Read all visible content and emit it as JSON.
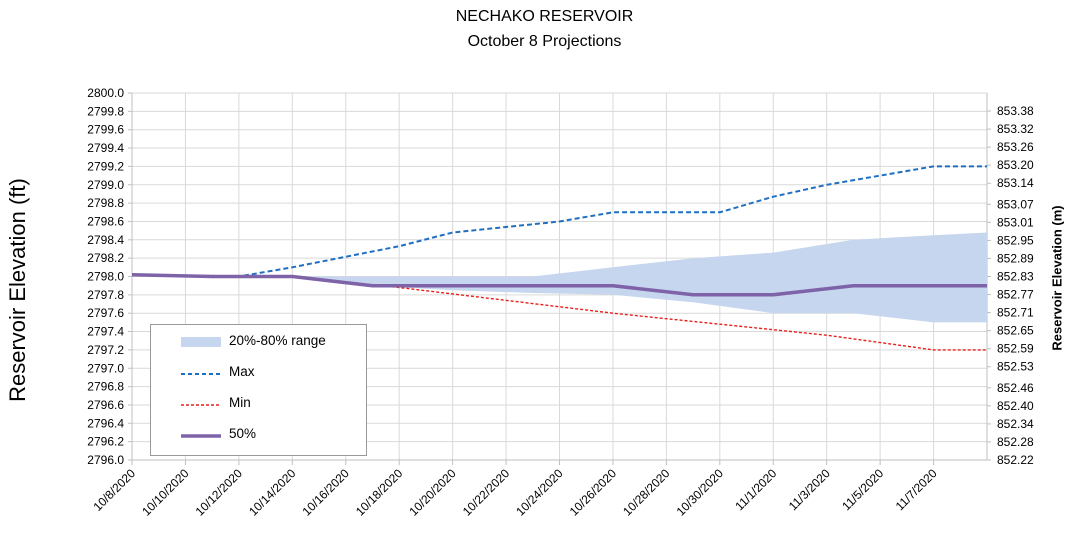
{
  "chart_data": {
    "type": "line",
    "title": "NECHAKO RESERVOIR",
    "subtitle": "October 8 Projections",
    "ylabel": "Reservoir Elevation (ft)",
    "ylabel_right": "Reservoir Elevation (m)",
    "ylim": [
      2796.0,
      2800.0
    ],
    "ylim_right": [
      852.22,
      853.44
    ],
    "y_ticks": [
      "2800.0",
      "2799.8",
      "2799.6",
      "2799.4",
      "2799.2",
      "2799.0",
      "2798.8",
      "2798.6",
      "2798.4",
      "2798.2",
      "2798.0",
      "2797.8",
      "2797.6",
      "2797.4",
      "2797.2",
      "2797.0",
      "2796.8",
      "2796.6",
      "2796.4",
      "2796.2",
      "2796.0"
    ],
    "y_ticks_right": [
      "853.38",
      "853.32",
      "853.26",
      "853.20",
      "853.14",
      "853.07",
      "853.01",
      "852.95",
      "852.89",
      "852.83",
      "852.77",
      "852.71",
      "852.65",
      "852.59",
      "852.53",
      "852.46",
      "852.40",
      "852.34",
      "852.28",
      "852.22"
    ],
    "x_ticks": [
      "10/8/2020",
      "10/10/2020",
      "10/12/2020",
      "10/14/2020",
      "10/16/2020",
      "10/18/2020",
      "10/20/2020",
      "10/22/2020",
      "10/24/2020",
      "10/26/2020",
      "10/28/2020",
      "10/30/2020",
      "11/1/2020",
      "11/3/2020",
      "11/5/2020",
      "11/7/2020"
    ],
    "x_range": [
      "10/8/2020",
      "11/9/2020"
    ],
    "grid": true,
    "legend_position": "bottom-left",
    "band": {
      "name": "20%-80% range",
      "color": "#c6d6ee",
      "x": [
        "10/8/2020",
        "10/11/2020",
        "10/14/2020",
        "10/17/2020",
        "10/20/2020",
        "10/23/2020",
        "10/26/2020",
        "10/29/2020",
        "11/1/2020",
        "11/4/2020",
        "11/7/2020",
        "11/9/2020"
      ],
      "upper": [
        2798.02,
        2798.0,
        2798.0,
        2798.0,
        2798.0,
        2798.0,
        2798.1,
        2798.2,
        2798.26,
        2798.4,
        2798.45,
        2798.48
      ],
      "lower": [
        2798.02,
        2798.0,
        2798.0,
        2797.9,
        2797.85,
        2797.82,
        2797.8,
        2797.72,
        2797.6,
        2797.6,
        2797.5,
        2797.5
      ]
    },
    "series": [
      {
        "name": "Max",
        "style": "dashed",
        "color": "#1f6fc0",
        "x": [
          "10/8/2020",
          "10/12/2020",
          "10/14/2020",
          "10/18/2020",
          "10/20/2020",
          "10/24/2020",
          "10/26/2020",
          "10/30/2020",
          "11/1/2020",
          "11/3/2020",
          "11/5/2020",
          "11/7/2020",
          "11/9/2020"
        ],
        "values": [
          2798.02,
          2798.0,
          2798.1,
          2798.33,
          2798.48,
          2798.6,
          2798.7,
          2798.7,
          2798.87,
          2799.0,
          2799.1,
          2799.2,
          2799.2
        ]
      },
      {
        "name": "Min",
        "style": "dashed",
        "color": "#e8201c",
        "x": [
          "10/8/2020",
          "10/14/2020",
          "10/18/2020",
          "10/26/2020",
          "10/30/2020",
          "11/1/2020",
          "11/3/2020",
          "11/7/2020",
          "11/9/2020"
        ],
        "values": [
          2798.02,
          2798.0,
          2797.88,
          2797.6,
          2797.48,
          2797.42,
          2797.36,
          2797.2,
          2797.2
        ]
      },
      {
        "name": "50%",
        "style": "solid",
        "color": "#7e63a8",
        "x": [
          "10/8/2020",
          "10/11/2020",
          "10/14/2020",
          "10/17/2020",
          "10/26/2020",
          "10/29/2020",
          "11/1/2020",
          "11/4/2020",
          "11/7/2020",
          "11/9/2020"
        ],
        "values": [
          2798.02,
          2798.0,
          2798.0,
          2797.9,
          2797.9,
          2797.8,
          2797.8,
          2797.9,
          2797.9,
          2797.9
        ]
      }
    ]
  }
}
